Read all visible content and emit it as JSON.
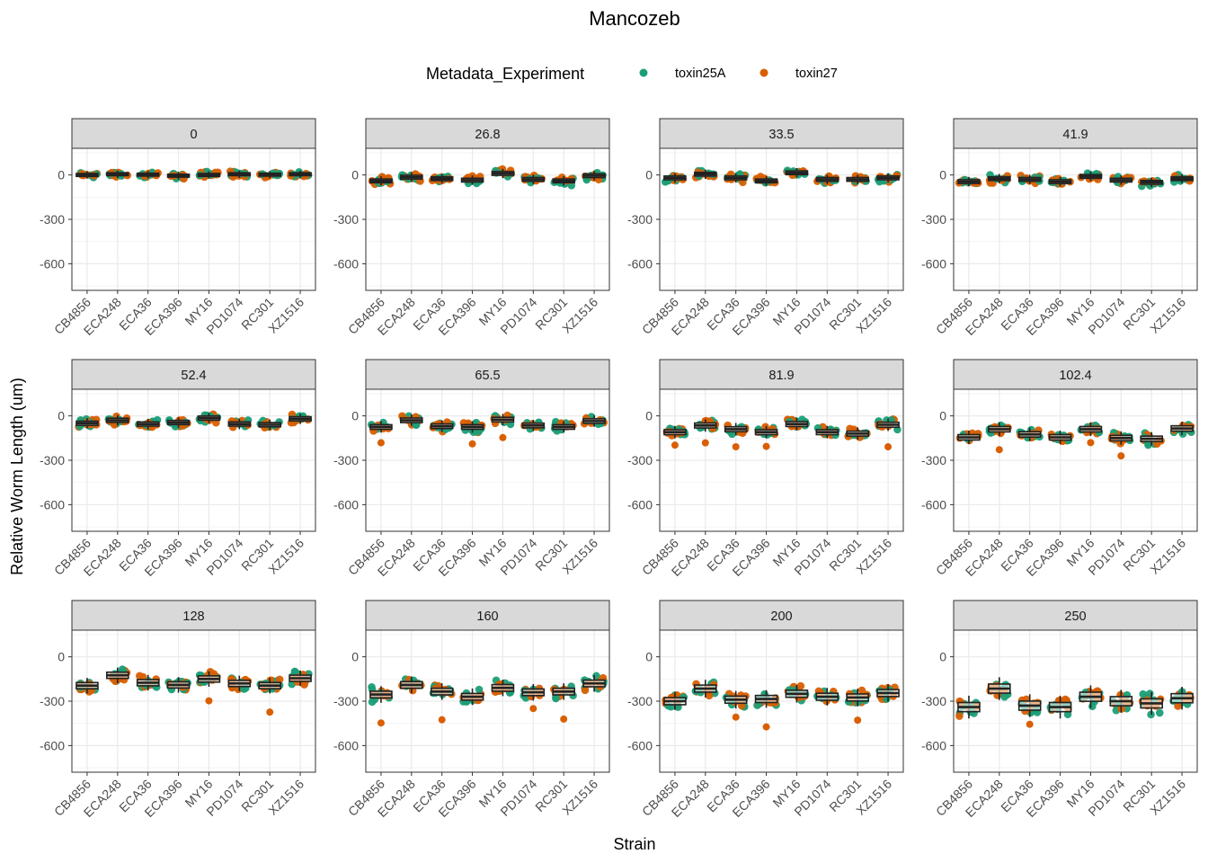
{
  "chart_data": {
    "type": "boxplot",
    "title": "Mancozeb",
    "xlabel": "Strain",
    "ylabel": "Relative Worm Length (um)",
    "legend": {
      "title": "Metadata_Experiment",
      "placement": "top",
      "entries": [
        {
          "name": "toxin25A",
          "color": "#1b9e77"
        },
        {
          "name": "toxin27",
          "color": "#d95f02"
        }
      ]
    },
    "categories": [
      "CB4856",
      "ECA248",
      "ECA36",
      "ECA396",
      "MY16",
      "PD1074",
      "RC301",
      "XZ1516"
    ],
    "ylim": [
      -780,
      180
    ],
    "yticks": [
      0,
      -300,
      -600
    ],
    "ytick_labels": [
      "0",
      "-300",
      "-600"
    ],
    "grid": true,
    "facets": [
      {
        "label": "0",
        "medians": [
          0,
          5,
          2,
          -5,
          0,
          5,
          2,
          5
        ],
        "spread": 35
      },
      {
        "label": "26.8",
        "medians": [
          -40,
          -15,
          -25,
          -35,
          10,
          -30,
          -40,
          -5
        ],
        "spread": 45
      },
      {
        "label": "33.5",
        "medians": [
          -20,
          5,
          -20,
          -40,
          15,
          -30,
          -30,
          -20
        ],
        "spread": 45
      },
      {
        "label": "41.9",
        "medians": [
          -45,
          -25,
          -30,
          -45,
          -10,
          -35,
          -50,
          -25
        ],
        "spread": 45
      },
      {
        "label": "52.4",
        "medians": [
          -50,
          -30,
          -55,
          -45,
          -15,
          -55,
          -60,
          -20
        ],
        "spread": 50
      },
      {
        "label": "65.5",
        "medians": [
          -75,
          -30,
          -70,
          -75,
          -25,
          -65,
          -75,
          -35
        ],
        "spread": 55
      },
      {
        "label": "81.9",
        "medians": [
          -110,
          -65,
          -90,
          -110,
          -55,
          -110,
          -120,
          -60
        ],
        "spread": 60
      },
      {
        "label": "102.4",
        "medians": [
          -145,
          -90,
          -125,
          -145,
          -90,
          -150,
          -155,
          -85
        ],
        "spread": 65
      },
      {
        "label": "128",
        "medians": [
          -195,
          -125,
          -175,
          -190,
          -150,
          -180,
          -195,
          -145
        ],
        "spread": 75
      },
      {
        "label": "160",
        "medians": [
          -255,
          -190,
          -235,
          -270,
          -210,
          -240,
          -235,
          -180
        ],
        "spread": 80
      },
      {
        "label": "200",
        "medians": [
          -300,
          -215,
          -290,
          -285,
          -250,
          -270,
          -275,
          -245
        ],
        "spread": 85
      },
      {
        "label": "250",
        "medians": [
          -340,
          -215,
          -330,
          -340,
          -270,
          -300,
          -315,
          -280
        ],
        "spread": 110
      }
    ]
  }
}
